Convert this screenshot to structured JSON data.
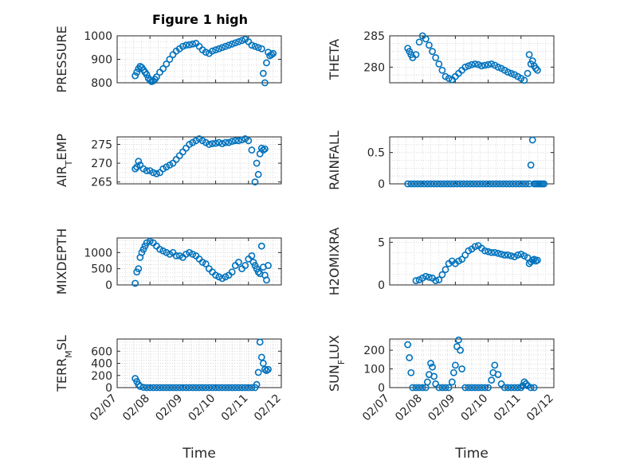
{
  "figure_title": "Figure 1 high",
  "chart_data": [
    {
      "type": "scatter",
      "title": "Figure 1 high",
      "ylabel": "PRESSURE",
      "xlabel": "",
      "ylim": [
        800,
        1000
      ],
      "yticks": [
        800,
        900,
        1000
      ],
      "xlim": [
        "02/07",
        "02/12"
      ],
      "xticks": [
        "02/07",
        "02/08",
        "02/09",
        "02/10",
        "02/11",
        "02/12"
      ],
      "x": [
        7.55,
        7.6,
        7.65,
        7.7,
        7.75,
        7.8,
        7.85,
        7.9,
        7.95,
        8.0,
        8.05,
        8.1,
        8.15,
        8.2,
        8.3,
        8.4,
        8.5,
        8.6,
        8.7,
        8.8,
        8.9,
        9.0,
        9.1,
        9.2,
        9.3,
        9.4,
        9.5,
        9.6,
        9.7,
        9.8,
        9.9,
        10.0,
        10.1,
        10.2,
        10.3,
        10.4,
        10.5,
        10.6,
        10.7,
        10.8,
        10.9,
        11.0,
        11.1,
        11.2,
        11.3,
        11.4,
        11.45,
        11.5,
        11.55,
        11.6,
        11.65,
        11.7,
        11.75
      ],
      "y": [
        830,
        845,
        860,
        870,
        865,
        855,
        845,
        835,
        820,
        810,
        805,
        808,
        815,
        825,
        845,
        860,
        880,
        900,
        920,
        935,
        945,
        955,
        960,
        962,
        965,
        968,
        955,
        940,
        930,
        925,
        935,
        940,
        945,
        950,
        955,
        960,
        965,
        970,
        975,
        980,
        985,
        975,
        960,
        955,
        950,
        945,
        840,
        800,
        885,
        930,
        915,
        920,
        925
      ]
    },
    {
      "type": "scatter",
      "ylabel": "THETA",
      "xlabel": "",
      "ylim": [
        277.5,
        285
      ],
      "yticks": [
        280,
        285
      ],
      "xlim": [
        "02/07",
        "02/12"
      ],
      "xticks": [
        "02/07",
        "02/08",
        "02/09",
        "02/10",
        "02/11",
        "02/12"
      ],
      "x": [
        7.55,
        7.6,
        7.65,
        7.7,
        7.8,
        7.9,
        8.0,
        8.1,
        8.2,
        8.3,
        8.4,
        8.5,
        8.6,
        8.7,
        8.8,
        8.9,
        9.0,
        9.1,
        9.2,
        9.3,
        9.4,
        9.5,
        9.6,
        9.7,
        9.8,
        9.9,
        10.0,
        10.1,
        10.2,
        10.3,
        10.4,
        10.5,
        10.6,
        10.7,
        10.8,
        10.9,
        11.0,
        11.1,
        11.2,
        11.25,
        11.3,
        11.35,
        11.4,
        11.45,
        11.5
      ],
      "y": [
        283,
        282.5,
        282,
        281.5,
        282,
        284,
        285,
        284.5,
        283.5,
        282.5,
        281.5,
        280.5,
        279.5,
        278.5,
        278.2,
        278,
        278.5,
        279,
        279.5,
        280,
        280.2,
        280.4,
        280.5,
        280.4,
        280.2,
        280.3,
        280.4,
        280.5,
        280.3,
        280,
        279.8,
        279.5,
        279.2,
        279,
        278.8,
        278.5,
        278.2,
        277.9,
        279,
        282,
        280.5,
        281,
        280.2,
        279.8,
        279.5
      ]
    },
    {
      "type": "scatter",
      "ylabel": "AIR_TEMP",
      "xlabel": "",
      "ylim": [
        264.5,
        277
      ],
      "yticks": [
        265,
        270,
        275
      ],
      "xlim": [
        "02/07",
        "02/12"
      ],
      "xticks": [
        "02/07",
        "02/08",
        "02/09",
        "02/10",
        "02/11",
        "02/12"
      ],
      "x": [
        7.55,
        7.6,
        7.65,
        7.7,
        7.8,
        7.9,
        8.0,
        8.1,
        8.2,
        8.3,
        8.4,
        8.5,
        8.6,
        8.7,
        8.8,
        8.9,
        9.0,
        9.1,
        9.2,
        9.3,
        9.4,
        9.5,
        9.6,
        9.7,
        9.8,
        9.9,
        10.0,
        10.1,
        10.2,
        10.3,
        10.4,
        10.5,
        10.6,
        10.7,
        10.8,
        10.9,
        11.0,
        11.1,
        11.2,
        11.25,
        11.3,
        11.35,
        11.4,
        11.45,
        11.5
      ],
      "y": [
        268.5,
        269,
        270.5,
        269.5,
        268.5,
        268,
        268,
        267.5,
        267.2,
        267.5,
        268.5,
        269,
        269.5,
        270,
        271,
        272,
        273,
        274,
        275,
        275.5,
        276,
        276.5,
        276,
        275.5,
        275,
        275.2,
        275.3,
        275.5,
        275.2,
        275.5,
        275.5,
        275.8,
        276,
        276,
        276.2,
        276.5,
        276,
        273.5,
        265,
        270,
        267,
        272.5,
        274,
        273.5,
        273.8
      ]
    },
    {
      "type": "scatter",
      "ylabel": "RAINFALL",
      "xlabel": "",
      "ylim": [
        0,
        0.75
      ],
      "yticks": [
        0,
        0.5
      ],
      "xlim": [
        "02/07",
        "02/12"
      ],
      "xticks": [
        "02/07",
        "02/08",
        "02/09",
        "02/10",
        "02/11",
        "02/12"
      ],
      "x": [
        7.55,
        7.65,
        7.75,
        7.85,
        7.95,
        8.05,
        8.15,
        8.25,
        8.35,
        8.45,
        8.55,
        8.65,
        8.75,
        8.85,
        8.95,
        9.05,
        9.15,
        9.25,
        9.35,
        9.45,
        9.55,
        9.65,
        9.75,
        9.85,
        9.95,
        10.05,
        10.15,
        10.25,
        10.35,
        10.45,
        10.55,
        10.65,
        10.75,
        10.85,
        10.95,
        11.05,
        11.15,
        11.25,
        11.3,
        11.35,
        11.4,
        11.45,
        11.5,
        11.55,
        11.6,
        11.65,
        11.7
      ],
      "y": [
        0,
        0,
        0,
        0,
        0,
        0,
        0,
        0,
        0,
        0,
        0,
        0,
        0,
        0,
        0,
        0,
        0,
        0,
        0,
        0,
        0,
        0,
        0,
        0,
        0,
        0,
        0,
        0,
        0,
        0,
        0,
        0,
        0,
        0,
        0,
        0,
        0,
        0,
        0.3,
        0.7,
        0,
        0,
        0,
        0,
        0,
        0,
        0
      ]
    },
    {
      "type": "scatter",
      "ylabel": "MIXDEPTH",
      "xlabel": "",
      "ylim": [
        0,
        1450
      ],
      "yticks": [
        0,
        500,
        1000
      ],
      "xlim": [
        "02/07",
        "02/12"
      ],
      "xticks": [
        "02/07",
        "02/08",
        "02/09",
        "02/10",
        "02/11",
        "02/12"
      ],
      "x": [
        7.55,
        7.6,
        7.65,
        7.7,
        7.75,
        7.8,
        7.85,
        7.9,
        8.0,
        8.1,
        8.2,
        8.3,
        8.4,
        8.5,
        8.6,
        8.7,
        8.8,
        8.9,
        9.0,
        9.1,
        9.2,
        9.3,
        9.4,
        9.5,
        9.6,
        9.7,
        9.8,
        9.9,
        10.0,
        10.1,
        10.2,
        10.3,
        10.4,
        10.5,
        10.6,
        10.7,
        10.8,
        10.9,
        11.0,
        11.1,
        11.15,
        11.2,
        11.25,
        11.3,
        11.35,
        11.4,
        11.45,
        11.5,
        11.55,
        11.6
      ],
      "y": [
        50,
        400,
        500,
        850,
        1000,
        1100,
        1200,
        1300,
        1350,
        1300,
        1200,
        1100,
        1050,
        1000,
        950,
        1000,
        900,
        900,
        850,
        950,
        1000,
        950,
        900,
        800,
        700,
        650,
        500,
        400,
        300,
        250,
        200,
        250,
        300,
        400,
        600,
        700,
        500,
        600,
        800,
        900,
        700,
        600,
        500,
        400,
        350,
        1200,
        550,
        300,
        150,
        600
      ]
    },
    {
      "type": "scatter",
      "ylabel": "H2OMIXRA",
      "xlabel": "",
      "ylim": [
        0,
        5.5
      ],
      "yticks": [
        0,
        5
      ],
      "xlim": [
        "02/07",
        "02/12"
      ],
      "xticks": [
        "02/07",
        "02/08",
        "02/09",
        "02/10",
        "02/11",
        "02/12"
      ],
      "x": [
        7.8,
        7.9,
        8.0,
        8.1,
        8.2,
        8.3,
        8.4,
        8.5,
        8.6,
        8.7,
        8.8,
        8.9,
        9.0,
        9.1,
        9.2,
        9.3,
        9.4,
        9.5,
        9.6,
        9.7,
        9.8,
        9.9,
        10.0,
        10.1,
        10.2,
        10.3,
        10.4,
        10.5,
        10.6,
        10.7,
        10.8,
        10.9,
        11.0,
        11.1,
        11.2,
        11.25,
        11.3,
        11.35,
        11.4,
        11.45,
        11.5
      ],
      "y": [
        0.5,
        0.6,
        0.8,
        1.0,
        0.9,
        0.8,
        0.5,
        0.6,
        1.2,
        1.8,
        2.5,
        2.8,
        2.5,
        2.8,
        3.0,
        3.5,
        4.0,
        4.2,
        4.5,
        4.6,
        4.3,
        4.0,
        3.9,
        3.8,
        3.8,
        3.7,
        3.6,
        3.5,
        3.5,
        3.4,
        3.3,
        3.5,
        3.6,
        3.4,
        3.2,
        2.5,
        2.7,
        2.9,
        3.0,
        2.8,
        2.9
      ]
    },
    {
      "type": "scatter",
      "ylabel": "TERR_MSL",
      "xlabel": "Time",
      "ylim": [
        0,
        800
      ],
      "yticks": [
        0,
        200,
        400,
        600
      ],
      "xlim": [
        "02/07",
        "02/12"
      ],
      "xticks": [
        "02/07",
        "02/08",
        "02/09",
        "02/10",
        "02/11",
        "02/12"
      ],
      "x": [
        7.55,
        7.6,
        7.65,
        7.7,
        7.8,
        7.9,
        8.0,
        8.1,
        8.2,
        8.3,
        8.4,
        8.5,
        8.6,
        8.7,
        8.8,
        8.9,
        9.0,
        9.1,
        9.2,
        9.3,
        9.4,
        9.5,
        9.6,
        9.7,
        9.8,
        9.9,
        10.0,
        10.1,
        10.2,
        10.3,
        10.4,
        10.5,
        10.6,
        10.7,
        10.8,
        10.9,
        11.0,
        11.1,
        11.2,
        11.25,
        11.3,
        11.35,
        11.4,
        11.45,
        11.5,
        11.55,
        11.6
      ],
      "y": [
        150,
        100,
        50,
        20,
        5,
        0,
        0,
        0,
        0,
        0,
        0,
        0,
        0,
        0,
        0,
        0,
        0,
        0,
        0,
        0,
        0,
        0,
        0,
        0,
        0,
        0,
        0,
        0,
        0,
        0,
        0,
        0,
        0,
        0,
        0,
        0,
        0,
        0,
        0,
        50,
        250,
        750,
        500,
        400,
        300,
        280,
        300
      ]
    },
    {
      "type": "scatter",
      "ylabel": "SUN_FLUX",
      "xlabel": "Time",
      "ylim": [
        0,
        260
      ],
      "yticks": [
        0,
        100,
        200
      ],
      "xlim": [
        "02/07",
        "02/12"
      ],
      "xticks": [
        "02/07",
        "02/08",
        "02/09",
        "02/10",
        "02/11",
        "02/12"
      ],
      "x": [
        7.55,
        7.6,
        7.65,
        7.7,
        7.8,
        7.9,
        8.0,
        8.1,
        8.15,
        8.2,
        8.25,
        8.3,
        8.35,
        8.4,
        8.5,
        8.6,
        8.7,
        8.8,
        8.9,
        8.95,
        9.0,
        9.05,
        9.1,
        9.15,
        9.2,
        9.3,
        9.4,
        9.5,
        9.6,
        9.7,
        9.8,
        9.9,
        10.0,
        10.1,
        10.15,
        10.2,
        10.3,
        10.4,
        10.5,
        10.6,
        10.7,
        10.8,
        10.9,
        11.0,
        11.05,
        11.1,
        11.15,
        11.2,
        11.3,
        11.4
      ],
      "y": [
        230,
        160,
        80,
        0,
        0,
        0,
        0,
        0,
        30,
        70,
        130,
        110,
        60,
        20,
        0,
        0,
        0,
        0,
        30,
        80,
        120,
        220,
        255,
        200,
        100,
        0,
        0,
        0,
        0,
        0,
        0,
        0,
        0,
        40,
        80,
        120,
        70,
        20,
        0,
        0,
        0,
        0,
        0,
        0,
        10,
        30,
        20,
        10,
        0,
        0
      ]
    }
  ]
}
